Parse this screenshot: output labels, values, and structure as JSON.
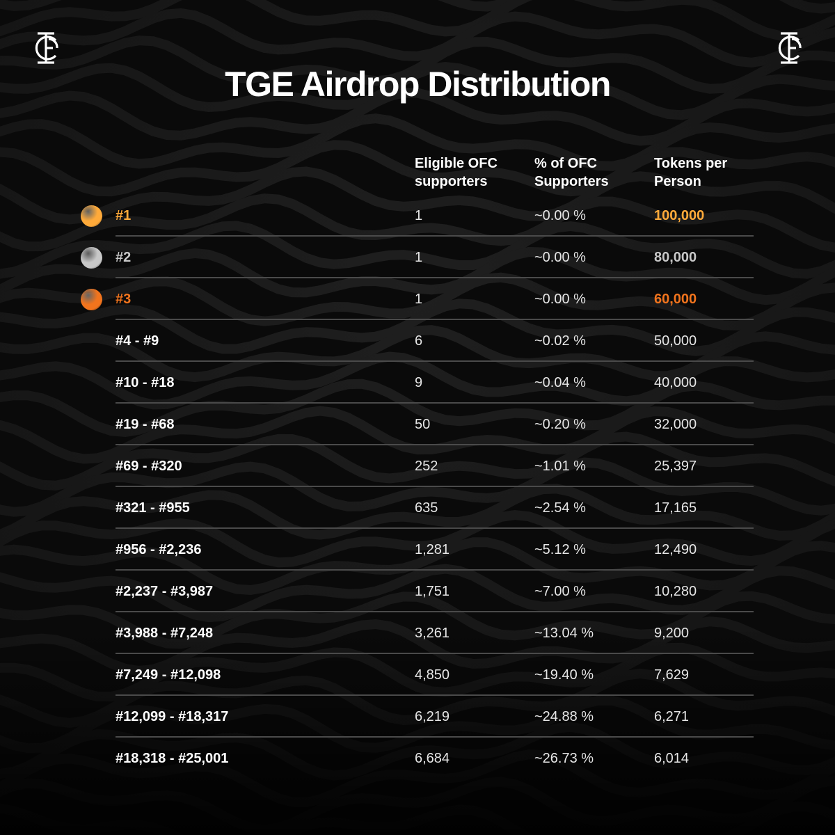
{
  "title": "TGE Airdrop Distribution",
  "logo_icon": "ofc-monogram-icon",
  "columns": {
    "eligible": "Eligible OFC supporters",
    "percent": "% of OFC Supporters",
    "tokens": "Tokens per Person"
  },
  "colors": {
    "gold": "#ffaa3a",
    "silver": "#c8c8c8",
    "bronze": "#f2741d"
  },
  "rows": [
    {
      "rank": "#1",
      "eligible": "1",
      "percent": "~0.00 %",
      "tokens": "100,000",
      "medal": "gold"
    },
    {
      "rank": "#2",
      "eligible": "1",
      "percent": "~0.00 %",
      "tokens": "80,000",
      "medal": "silver"
    },
    {
      "rank": "#3",
      "eligible": "1",
      "percent": "~0.00 %",
      "tokens": "60,000",
      "medal": "bronze"
    },
    {
      "rank": "#4 - #9",
      "eligible": "6",
      "percent": "~0.02 %",
      "tokens": "50,000"
    },
    {
      "rank": "#10 - #18",
      "eligible": "9",
      "percent": "~0.04 %",
      "tokens": "40,000"
    },
    {
      "rank": "#19 - #68",
      "eligible": "50",
      "percent": "~0.20 %",
      "tokens": "32,000"
    },
    {
      "rank": "#69 - #320",
      "eligible": "252",
      "percent": "~1.01 %",
      "tokens": "25,397"
    },
    {
      "rank": "#321 - #955",
      "eligible": "635",
      "percent": "~2.54 %",
      "tokens": "17,165"
    },
    {
      "rank": "#956 - #2,236",
      "eligible": "1,281",
      "percent": "~5.12 %",
      "tokens": "12,490"
    },
    {
      "rank": "#2,237 - #3,987",
      "eligible": "1,751",
      "percent": "~7.00 %",
      "tokens": "10,280"
    },
    {
      "rank": "#3,988 - #7,248",
      "eligible": "3,261",
      "percent": "~13.04 %",
      "tokens": "9,200"
    },
    {
      "rank": "#7,249 - #12,098",
      "eligible": "4,850",
      "percent": "~19.40 %",
      "tokens": "7,629"
    },
    {
      "rank": "#12,099 - #18,317",
      "eligible": "6,219",
      "percent": "~24.88 %",
      "tokens": "6,271"
    },
    {
      "rank": "#18,318 - #25,001",
      "eligible": "6,684",
      "percent": "~26.73 %",
      "tokens": "6,014"
    }
  ]
}
